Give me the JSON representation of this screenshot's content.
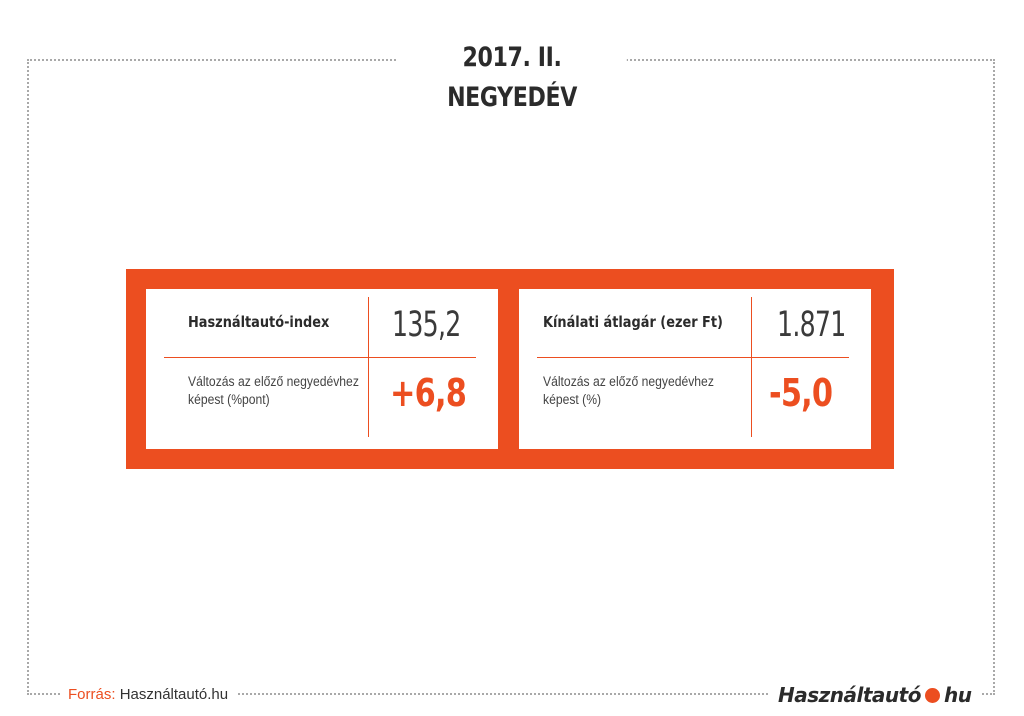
{
  "title": "2017. II. NEGYEDÉV",
  "cards": [
    {
      "label": "Használtautó-index",
      "value": "135,2",
      "description": "Változás az előző negyedévhez képest (%pont)",
      "change": "+6,8"
    },
    {
      "label": "Kínálati átlagár (ezer Ft)",
      "value": "1.871",
      "description": "Változás az előző negyedévhez képest (%)",
      "change": "-5,0"
    }
  ],
  "footer": {
    "source_label": "Forrás:",
    "source_name": "Használtautó.hu",
    "logo_left": "Használtautó",
    "logo_right": "hu"
  },
  "colors": {
    "accent": "#ec4e20",
    "text": "#2b2b2b",
    "frame": "#a9a9a9"
  }
}
